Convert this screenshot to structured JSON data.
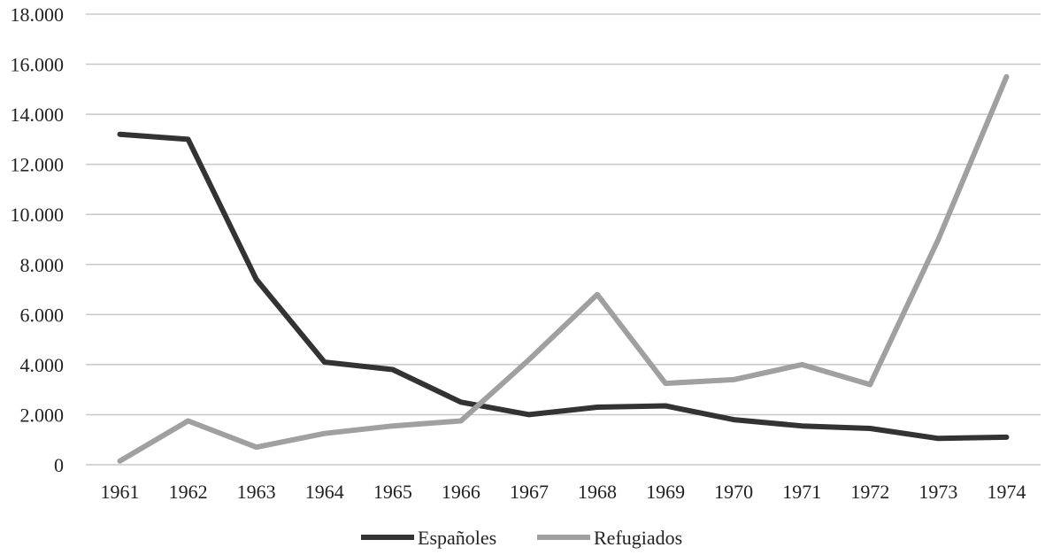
{
  "chart_data": {
    "type": "line",
    "title": "",
    "xlabel": "",
    "ylabel": "",
    "categories": [
      "1961",
      "1962",
      "1963",
      "1964",
      "1965",
      "1966",
      "1967",
      "1968",
      "1969",
      "1970",
      "1971",
      "1972",
      "1973",
      "1974"
    ],
    "ylim": [
      0,
      18000
    ],
    "yticks": [
      0,
      2000,
      4000,
      6000,
      8000,
      10000,
      12000,
      14000,
      16000,
      18000
    ],
    "ytick_labels": [
      "0",
      "2.000",
      "4.000",
      "6.000",
      "8.000",
      "10.000",
      "12.000",
      "14.000",
      "16.000",
      "18.000"
    ],
    "grid": "horizontal",
    "legend_position": "bottom-center",
    "series": [
      {
        "name": "Españoles",
        "color": "#333333",
        "values": [
          13200,
          13000,
          7400,
          4100,
          3800,
          2500,
          2000,
          2300,
          2350,
          1800,
          1550,
          1450,
          1050,
          1100
        ]
      },
      {
        "name": "Refugiados",
        "color": "#a0a0a0",
        "values": [
          150,
          1750,
          700,
          1250,
          1550,
          1750,
          4200,
          6800,
          3250,
          3400,
          4000,
          3200,
          9000,
          15500
        ]
      }
    ]
  }
}
